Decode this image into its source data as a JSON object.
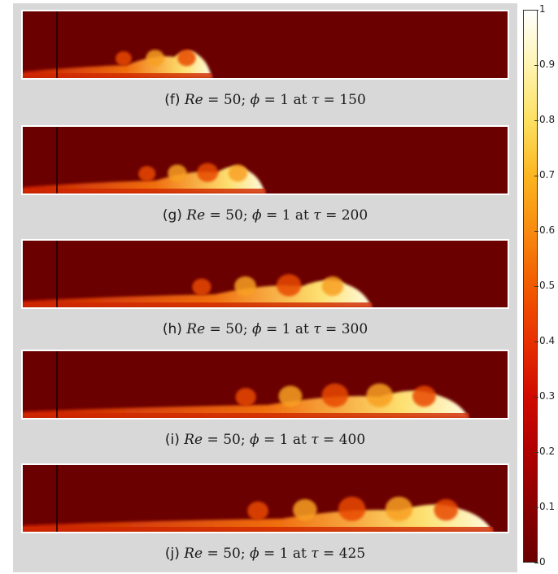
{
  "panels": [
    {
      "tag": "(f)",
      "re_value": "50",
      "phi_value": "1",
      "tau_value": "150",
      "front": 0.39
    },
    {
      "tag": "(g)",
      "re_value": "50",
      "phi_value": "1",
      "tau_value": "200",
      "front": 0.5
    },
    {
      "tag": "(h)",
      "re_value": "50",
      "phi_value": "1",
      "tau_value": "300",
      "front": 0.72
    },
    {
      "tag": "(i)",
      "re_value": "50",
      "phi_value": "1",
      "tau_value": "400",
      "front": 0.92
    },
    {
      "tag": "(j)",
      "re_value": "50",
      "phi_value": "1",
      "tau_value": "425",
      "front": 0.97
    }
  ],
  "caption": {
    "re_symbol": "Re",
    "phi_symbol": "ϕ",
    "at_word": "at",
    "tau_symbol": "τ"
  },
  "colorbar": {
    "ticks": [
      "1",
      "0.9",
      "0.8",
      "0.7",
      "0.6",
      "0.5",
      "0.4",
      "0.3",
      "0.2",
      "0.1",
      "0"
    ],
    "colors": {
      "low": "#6b0000",
      "mid": "#f25a00",
      "high": "#ffffff"
    }
  }
}
